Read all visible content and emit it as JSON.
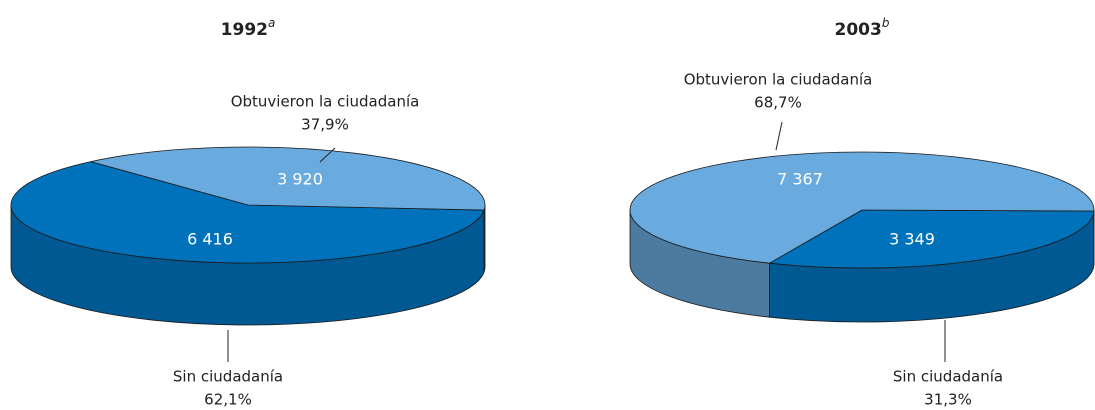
{
  "chart_data": [
    {
      "type": "pie3d",
      "title": "1992",
      "title_note": "a",
      "categories": [
        "Obtuvieron la ciudadanía",
        "Sin ciudadanía"
      ],
      "values": [
        3920,
        6416
      ],
      "value_labels": [
        "3 920",
        "6 416"
      ],
      "percent_values": [
        37.9,
        62.1
      ],
      "percent_labels": [
        "37,9%",
        "62,1%"
      ],
      "colors": [
        "#6aabdf",
        "#0072bc"
      ]
    },
    {
      "type": "pie3d",
      "title": "2003",
      "title_note": "b",
      "categories": [
        "Obtuvieron la ciudadanía",
        "Sin ciudadanía"
      ],
      "values": [
        7367,
        3349
      ],
      "value_labels": [
        "7 367",
        "3 349"
      ],
      "percent_values": [
        68.7,
        31.3
      ],
      "percent_labels": [
        "68,7%",
        "31,3%"
      ],
      "colors": [
        "#6aabdf",
        "#0072bc"
      ]
    }
  ]
}
